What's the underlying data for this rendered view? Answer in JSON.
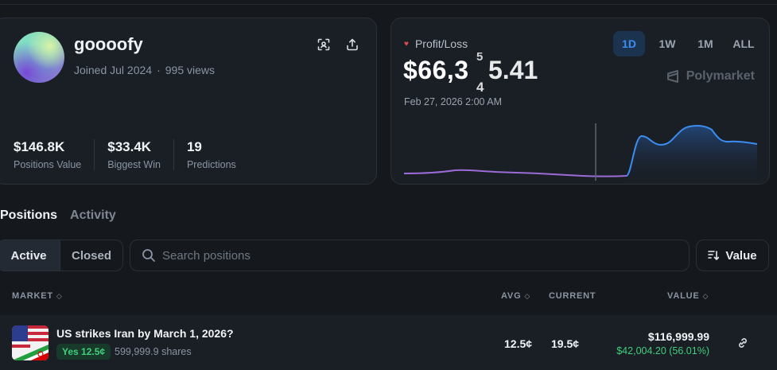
{
  "profile": {
    "username": "goooofy",
    "joined": "Joined Jul 2024",
    "views": "995 views",
    "stats": [
      {
        "value": "$146.8K",
        "label": "Positions Value"
      },
      {
        "value": "$33.4K",
        "label": "Biggest Win"
      },
      {
        "value": "19",
        "label": "Predictions"
      }
    ]
  },
  "pnl": {
    "label": "Profit/Loss",
    "value_main": "$66,3",
    "value_tail": "5.41",
    "date": "Feb 27, 2026 2:00 AM",
    "ranges": [
      "1D",
      "1W",
      "1M",
      "ALL"
    ],
    "active_range": "1D",
    "brand": "Polymarket",
    "colors": {
      "before": "#9b6bd6",
      "after": "#3b8df0",
      "loss": "#e5484d"
    }
  },
  "tabs": {
    "positions": "Positions",
    "activity": "Activity"
  },
  "filter": {
    "active": "Active",
    "closed": "Closed"
  },
  "search": {
    "placeholder": "Search positions"
  },
  "sort": {
    "label": "Value"
  },
  "table": {
    "headers": {
      "market": "MARKET",
      "avg": "AVG",
      "current": "CURRENT",
      "value": "VALUE"
    },
    "rows": [
      {
        "title": "US strikes Iran by March 1, 2026?",
        "outcome": "Yes 12.5¢",
        "shares": "599,999.9 shares",
        "avg": "12.5¢",
        "current": "19.5¢",
        "value": "$116,999.99",
        "pnl": "$42,004.20 (56.01%)"
      }
    ]
  }
}
